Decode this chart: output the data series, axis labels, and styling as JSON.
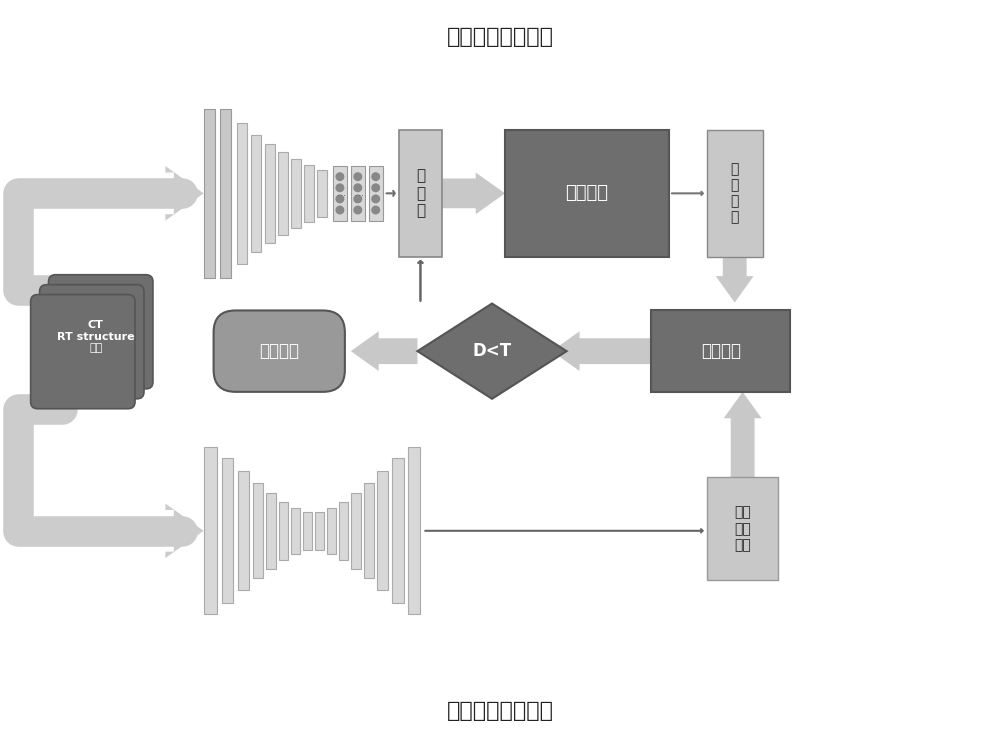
{
  "title1": "第一神经网络模型",
  "title2": "第二神经网络模型",
  "bg_color": "#ffffff",
  "c_dark": "#6e6e6e",
  "c_mid": "#999999",
  "c_light": "#c8c8c8",
  "c_lighter": "#d8d8d8",
  "c_arrow": "#cccccc",
  "c_arrow_dark": "#aaaaaa",
  "c_stroke": "#888888",
  "text_white": "#ffffff",
  "text_dark": "#222222",
  "input_text": "CT\nRT structure\n射野",
  "param_text": "参\n数\n值",
  "dose_opt_text": "剂量优化",
  "dose_dist_text": "剂\n量\n分\n布",
  "dose_compare_text": "剂量对比",
  "diamond_text": "D<T",
  "output_plan_text": "输出计划",
  "best_dose_text": "最优\n剂量\n分布"
}
